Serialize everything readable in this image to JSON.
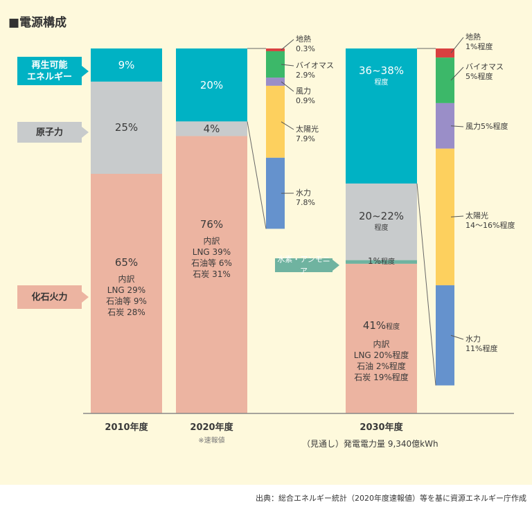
{
  "title": "■電源構成",
  "colors": {
    "background": "#fef9dc",
    "renewable": "#00b2c4",
    "nuclear": "#c8cbcc",
    "fossil": "#ecb4a1",
    "hydrogen": "#6fb3a0",
    "geothermal": "#d94040",
    "biomass": "#3cb869",
    "wind": "#9a8ec8",
    "solar": "#fdd05e",
    "hydro": "#6592cd"
  },
  "category_tags": {
    "renewable": "再生可能\nエネルギー",
    "nuclear": "原子力",
    "fossil": "化石火力",
    "hydrogen": "水素・アンモニア"
  },
  "chart_data": {
    "type": "bar",
    "stacked": true,
    "title": "電源構成",
    "unit": "%",
    "categories": [
      "2010年度",
      "2020年度",
      "2030年度"
    ],
    "category_notes": [
      "",
      "※速報値",
      "（見通し）発電電力量 9,340億kWh"
    ],
    "bars": [
      {
        "year": "2010年度",
        "segments": [
          {
            "key": "renewable",
            "value": 9,
            "label": "9%"
          },
          {
            "key": "nuclear",
            "value": 25,
            "label": "25%"
          },
          {
            "key": "fossil",
            "value": 65,
            "label": "65%",
            "breakdown_title": "内訳",
            "breakdown": [
              "LNG 29%",
              "石油等 9%",
              "石炭 28%"
            ]
          }
        ]
      },
      {
        "year": "2020年度",
        "segments": [
          {
            "key": "renewable",
            "value": 20,
            "label": "20%"
          },
          {
            "key": "nuclear",
            "value": 4,
            "label": "4%"
          },
          {
            "key": "fossil",
            "value": 76,
            "label": "76%",
            "breakdown_title": "内訳",
            "breakdown": [
              "LNG 39%",
              "石油等 6%",
              "石炭 31%"
            ]
          }
        ]
      },
      {
        "year": "2030年度",
        "segments": [
          {
            "key": "renewable",
            "value": 37,
            "label": "36~38%",
            "sub": "程度"
          },
          {
            "key": "nuclear",
            "value": 21,
            "label": "20~22%",
            "sub": "程度"
          },
          {
            "key": "hydrogen",
            "value": 1,
            "label": "1%",
            "sub": "程度"
          },
          {
            "key": "fossil",
            "value": 41,
            "label": "41%",
            "sub": "程度",
            "breakdown_title": "内訳",
            "breakdown": [
              "LNG 20%程度",
              "石油 2%程度",
              "石炭 19%程度"
            ]
          }
        ]
      }
    ],
    "renewable_breakdown": [
      {
        "year": "2020年度",
        "items": [
          {
            "key": "geothermal",
            "name": "地熱",
            "value": 0.3,
            "label": "0.3%"
          },
          {
            "key": "biomass",
            "name": "バイオマス",
            "value": 2.9,
            "label": "2.9%"
          },
          {
            "key": "wind",
            "name": "風力",
            "value": 0.9,
            "label": "0.9%"
          },
          {
            "key": "solar",
            "name": "太陽光",
            "value": 7.9,
            "label": "7.9%"
          },
          {
            "key": "hydro",
            "name": "水力",
            "value": 7.8,
            "label": "7.8%"
          }
        ]
      },
      {
        "year": "2030年度",
        "items": [
          {
            "key": "geothermal",
            "name": "地熱",
            "value": 1,
            "label": "1%程度"
          },
          {
            "key": "biomass",
            "name": "バイオマス",
            "value": 5,
            "label": "5%程度"
          },
          {
            "key": "wind",
            "name": "風力",
            "value": 5,
            "label": "5%程度"
          },
          {
            "key": "solar",
            "name": "太陽光",
            "value": 15,
            "label": "14～16%程度"
          },
          {
            "key": "hydro",
            "name": "水力",
            "value": 11,
            "label": "11%程度"
          }
        ]
      }
    ]
  },
  "source": "出典：総合エネルギー統計（2020年度速報値）等を基に資源エネルギー庁作成"
}
